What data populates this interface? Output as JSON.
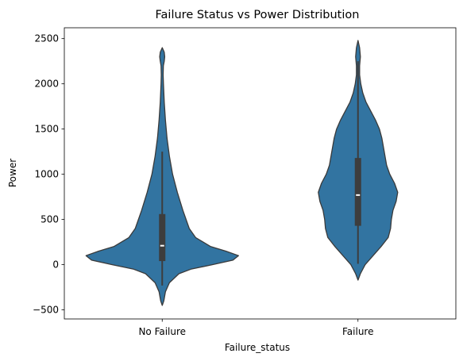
{
  "chart_data": {
    "type": "violin",
    "title": "Failure Status vs Power Distribution",
    "xlabel": "Failure_status",
    "ylabel": "Power",
    "categories": [
      "No Failure",
      "Failure"
    ],
    "ylim": [
      -600,
      2620
    ],
    "yticks": [
      -500,
      0,
      500,
      1000,
      1500,
      2000,
      2500
    ],
    "grid": false,
    "legend": "none",
    "colors": {
      "fill": "#3274a1",
      "outline": "#3a3a3a",
      "box": "#3d3d3d",
      "median": "#ffffff"
    },
    "violins": [
      {
        "category": "No Failure",
        "median": 210,
        "q1": 40,
        "q3": 560,
        "whisker_low": -230,
        "whisker_high": 1250,
        "profile": [
          [
            -450,
            0.0
          ],
          [
            -400,
            0.02
          ],
          [
            -300,
            0.04
          ],
          [
            -200,
            0.09
          ],
          [
            -100,
            0.21
          ],
          [
            -50,
            0.36
          ],
          [
            0,
            0.63
          ],
          [
            50,
            0.89
          ],
          [
            100,
            0.96
          ],
          [
            150,
            0.8
          ],
          [
            200,
            0.61
          ],
          [
            300,
            0.42
          ],
          [
            400,
            0.34
          ],
          [
            500,
            0.3
          ],
          [
            600,
            0.26
          ],
          [
            800,
            0.19
          ],
          [
            1000,
            0.13
          ],
          [
            1200,
            0.09
          ],
          [
            1400,
            0.06
          ],
          [
            1600,
            0.04
          ],
          [
            1800,
            0.025
          ],
          [
            2000,
            0.015
          ],
          [
            2100,
            0.012
          ],
          [
            2200,
            0.014
          ],
          [
            2250,
            0.025
          ],
          [
            2300,
            0.032
          ],
          [
            2350,
            0.025
          ],
          [
            2400,
            0.0
          ]
        ]
      },
      {
        "category": "Failure",
        "median": 770,
        "q1": 430,
        "q3": 1180,
        "whisker_low": 10,
        "whisker_high": 2250,
        "profile": [
          [
            -170,
            0.0
          ],
          [
            -100,
            0.03
          ],
          [
            0,
            0.09
          ],
          [
            100,
            0.19
          ],
          [
            200,
            0.29
          ],
          [
            300,
            0.38
          ],
          [
            400,
            0.41
          ],
          [
            500,
            0.42
          ],
          [
            600,
            0.44
          ],
          [
            700,
            0.48
          ],
          [
            800,
            0.5
          ],
          [
            900,
            0.46
          ],
          [
            1000,
            0.4
          ],
          [
            1100,
            0.36
          ],
          [
            1200,
            0.34
          ],
          [
            1300,
            0.32
          ],
          [
            1400,
            0.3
          ],
          [
            1500,
            0.27
          ],
          [
            1600,
            0.22
          ],
          [
            1700,
            0.16
          ],
          [
            1800,
            0.1
          ],
          [
            1900,
            0.06
          ],
          [
            2000,
            0.035
          ],
          [
            2100,
            0.02
          ],
          [
            2200,
            0.02
          ],
          [
            2300,
            0.03
          ],
          [
            2400,
            0.02
          ],
          [
            2480,
            0.0
          ]
        ]
      }
    ]
  }
}
